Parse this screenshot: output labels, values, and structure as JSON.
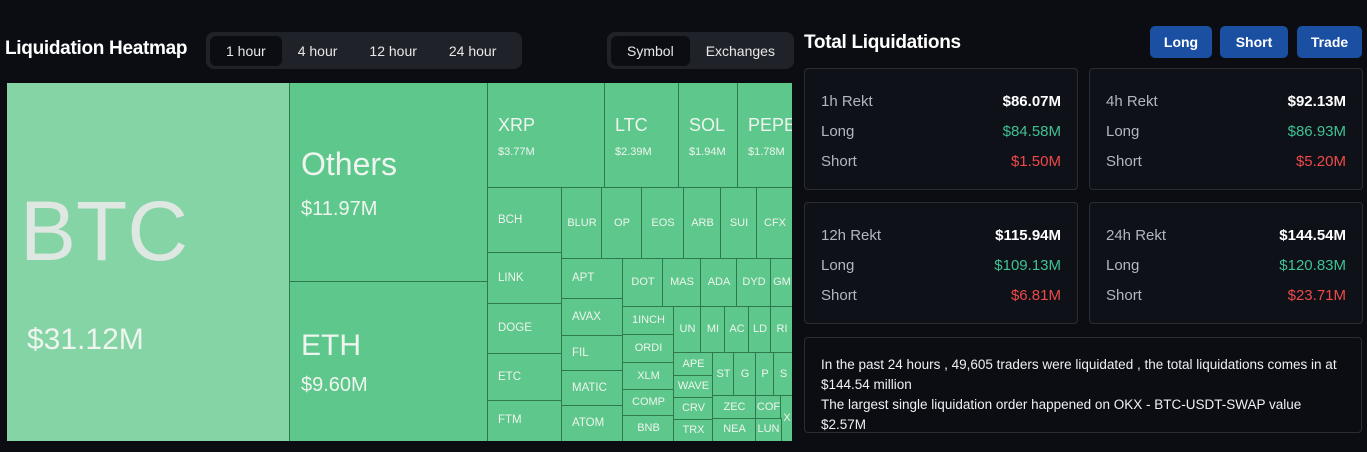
{
  "header": {
    "title": "Liquidation Heatmap",
    "time_tabs": [
      "1 hour",
      "4 hour",
      "12 hour",
      "24 hour"
    ],
    "view_tabs": [
      "Symbol",
      "Exchanges"
    ]
  },
  "heatmap": {
    "cells": [
      {
        "label": "BTC",
        "value": "$31.12M"
      },
      {
        "label": "Others",
        "value": "$11.97M"
      },
      {
        "label": "ETH",
        "value": "$9.60M"
      },
      {
        "label": "XRP",
        "value": "$3.77M"
      },
      {
        "label": "LTC",
        "value": "$2.39M"
      },
      {
        "label": "SOL",
        "value": "$1.94M"
      },
      {
        "label": "PEPE",
        "value": "$1.78M"
      },
      {
        "label": "BCH"
      },
      {
        "label": "LINK"
      },
      {
        "label": "DOGE"
      },
      {
        "label": "ETC"
      },
      {
        "label": "FTM"
      },
      {
        "label": "BLUR"
      },
      {
        "label": "OP"
      },
      {
        "label": "EOS"
      },
      {
        "label": "ARB"
      },
      {
        "label": "SUI"
      },
      {
        "label": "CFX"
      },
      {
        "label": "APT"
      },
      {
        "label": "AVAX"
      },
      {
        "label": "FIL"
      },
      {
        "label": "MATIC"
      },
      {
        "label": "ATOM"
      },
      {
        "label": "DOT"
      },
      {
        "label": "MAS"
      },
      {
        "label": "ADA"
      },
      {
        "label": "DYD"
      },
      {
        "label": "GM"
      },
      {
        "label": "1INCH"
      },
      {
        "label": "ORDI"
      },
      {
        "label": "XLM"
      },
      {
        "label": "COMP"
      },
      {
        "label": "BNB"
      },
      {
        "label": "UN"
      },
      {
        "label": "MI"
      },
      {
        "label": "AC"
      },
      {
        "label": "LD"
      },
      {
        "label": "RI"
      },
      {
        "label": "APE"
      },
      {
        "label": "WAVE"
      },
      {
        "label": "CRV"
      },
      {
        "label": "TRX"
      },
      {
        "label": "ST"
      },
      {
        "label": "G"
      },
      {
        "label": "P"
      },
      {
        "label": "S"
      },
      {
        "label": "ZEC"
      },
      {
        "label": "COF"
      },
      {
        "label": "X"
      },
      {
        "label": "NEA"
      },
      {
        "label": "LUN"
      }
    ]
  },
  "summary": {
    "title": "Total Liquidations",
    "buttons": [
      "Long",
      "Short",
      "Trade"
    ],
    "cards": [
      {
        "title": "1h Rekt",
        "total": "$86.07M",
        "long_label": "Long",
        "long": "$84.58M",
        "short_label": "Short",
        "short": "$1.50M"
      },
      {
        "title": "4h Rekt",
        "total": "$92.13M",
        "long_label": "Long",
        "long": "$86.93M",
        "short_label": "Short",
        "short": "$5.20M"
      },
      {
        "title": "12h Rekt",
        "total": "$115.94M",
        "long_label": "Long",
        "long": "$109.13M",
        "short_label": "Short",
        "short": "$6.81M"
      },
      {
        "title": "24h Rekt",
        "total": "$144.54M",
        "long_label": "Long",
        "long": "$120.83M",
        "short_label": "Short",
        "short": "$23.71M"
      }
    ],
    "note": [
      "In the past 24 hours , 49,605 traders were liquidated , the total liquidations comes in at $144.54 million",
      "The largest single liquidation order happened on OKX - BTC-USDT-SWAP value $2.57M"
    ]
  }
}
